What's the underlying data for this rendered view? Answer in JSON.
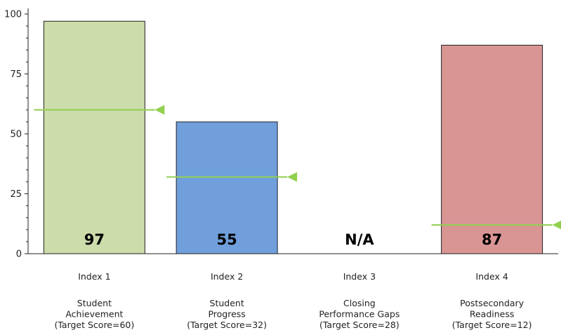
{
  "chart_data": {
    "type": "bar",
    "title": "",
    "xlabel": "",
    "ylabel": "",
    "ylim": [
      0,
      100
    ],
    "yticks": [
      0,
      25,
      50,
      75,
      100
    ],
    "grid": false,
    "categories": [
      {
        "index_label": "Index 1",
        "name_lines": [
          "Student",
          "Achievement",
          "(Target Score=60)"
        ],
        "value": 97,
        "value_label": "97",
        "target": 60,
        "color": "#ccdcaa"
      },
      {
        "index_label": "Index 2",
        "name_lines": [
          "Student",
          "Progress",
          "(Target Score=32)"
        ],
        "value": 55,
        "value_label": "55",
        "target": 32,
        "color": "#709fdc"
      },
      {
        "index_label": "Index 3",
        "name_lines": [
          "Closing",
          "Performance Gaps",
          "(Target Score=28)"
        ],
        "value": null,
        "value_label": "N/A",
        "target": null,
        "color": "#ffffff"
      },
      {
        "index_label": "Index 4",
        "name_lines": [
          "Postsecondary",
          "Readiness",
          "(Target Score=12)"
        ],
        "value": 87,
        "value_label": "87",
        "target": 12,
        "color": "#d99594"
      }
    ],
    "target_marker_color": "#92d050"
  }
}
